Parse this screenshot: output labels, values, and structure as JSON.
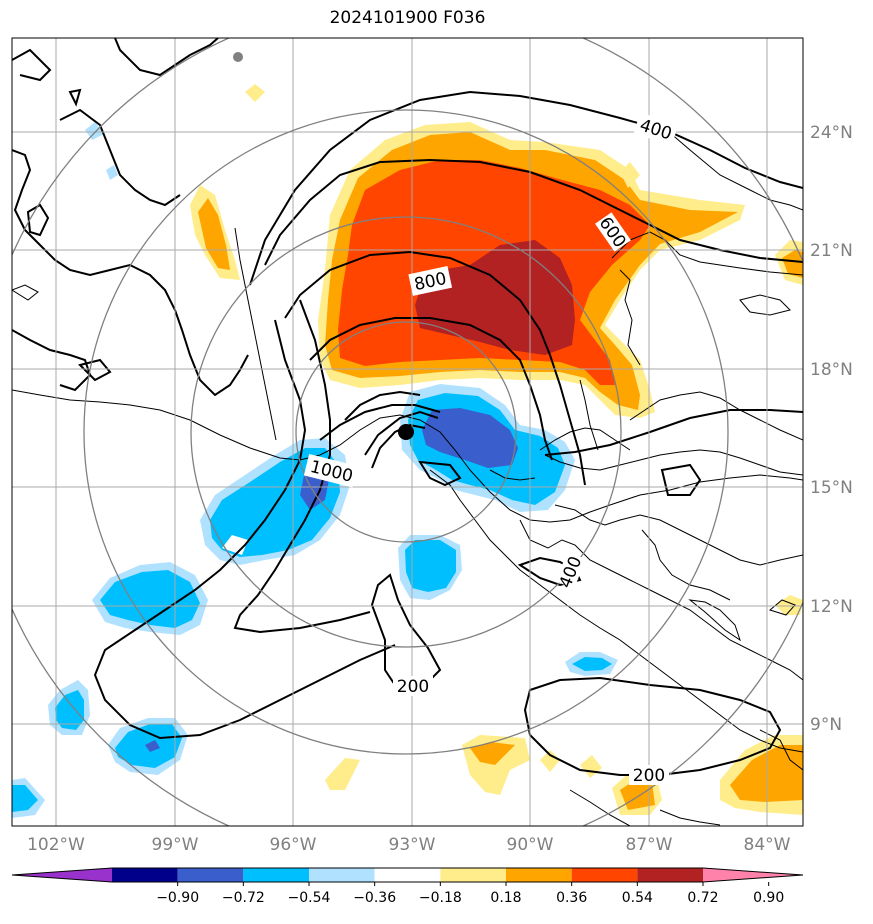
{
  "title": "2024101900 F036",
  "lon_labels": [
    "102°W",
    "99°W",
    "96°W",
    "93°W",
    "90°W",
    "87°W",
    "84°W"
  ],
  "lat_labels": [
    "24°N",
    "21°N",
    "18°N",
    "15°N",
    "12°N",
    "9°N"
  ],
  "colorbar": {
    "ticks": [
      "−0.90",
      "−0.72",
      "−0.54",
      "−0.36",
      "−0.18",
      "0.18",
      "0.36",
      "0.54",
      "0.72",
      "0.90"
    ],
    "colors": [
      "#9932cc",
      "#00008b",
      "#3a5fcd",
      "#00bfff",
      "#b0e2ff",
      "#ffffff",
      "#ffec8b",
      "#ffa500",
      "#ff4500",
      "#b22222",
      "#ff82ab"
    ]
  },
  "contour_labels": [
    "400",
    "600",
    "800",
    "1000",
    "400",
    "200",
    "200"
  ],
  "colors": {
    "frame": "#000000",
    "grid": "#a9a9a9",
    "rings": "#808080"
  }
}
